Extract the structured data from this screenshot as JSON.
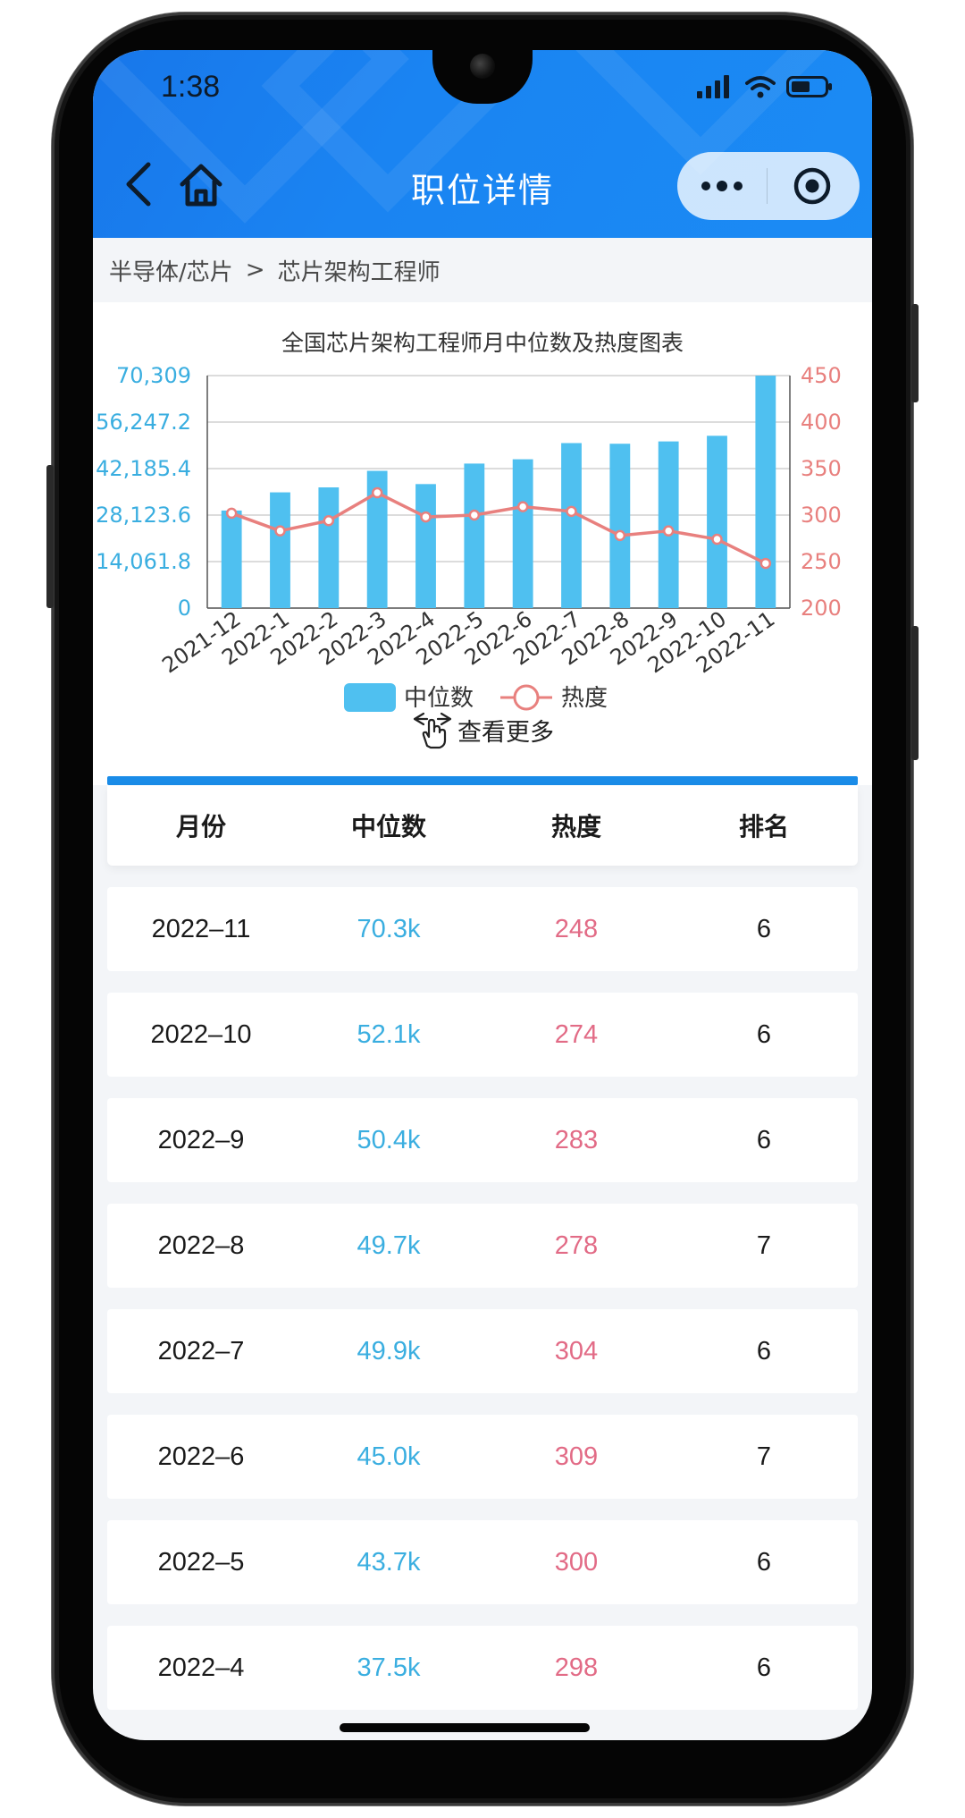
{
  "status_bar": {
    "time": "1:38"
  },
  "header": {
    "title": "职位详情"
  },
  "breadcrumb": {
    "category": "半导体/芯片",
    "separator": ">",
    "current": "芯片架构工程师"
  },
  "chart_data": {
    "type": "bar",
    "title": "全国芯片架构工程师月中位数及热度图表",
    "categories": [
      "2021-12",
      "2022-1",
      "2022-2",
      "2022-3",
      "2022-4",
      "2022-5",
      "2022-6",
      "2022-7",
      "2022-8",
      "2022-9",
      "2022-10",
      "2022-11"
    ],
    "series": [
      {
        "name": "中位数",
        "type": "bar",
        "axis": "left",
        "color": "#4fc0f0",
        "values": [
          29500,
          35000,
          36500,
          41500,
          37500,
          43700,
          45000,
          49900,
          49700,
          50400,
          52100,
          70300
        ]
      },
      {
        "name": "热度",
        "type": "line",
        "axis": "right",
        "color": "#e8807e",
        "values": [
          302,
          283,
          294,
          324,
          298,
          300,
          309,
          304,
          278,
          283,
          274,
          248
        ]
      }
    ],
    "y_left": {
      "ticks": [
        "0",
        "14,061.8",
        "28,123.6",
        "42,185.4",
        "56,247.2",
        "70,309"
      ],
      "min": 0,
      "max": 70309,
      "color": "#3aaee0"
    },
    "y_right": {
      "ticks": [
        "200",
        "250",
        "300",
        "350",
        "400",
        "450"
      ],
      "min": 200,
      "max": 450,
      "color": "#e8807e"
    },
    "grid": true,
    "legend": "bottom-center"
  },
  "see_more": {
    "label": "查看更多"
  },
  "table": {
    "headers": [
      "月份",
      "中位数",
      "热度",
      "排名"
    ],
    "rows": [
      {
        "month": "2022–11",
        "median": "70.3k",
        "heat": "248",
        "rank": "6"
      },
      {
        "month": "2022–10",
        "median": "52.1k",
        "heat": "274",
        "rank": "6"
      },
      {
        "month": "2022–9",
        "median": "50.4k",
        "heat": "283",
        "rank": "6"
      },
      {
        "month": "2022–8",
        "median": "49.7k",
        "heat": "278",
        "rank": "7"
      },
      {
        "month": "2022–7",
        "median": "49.9k",
        "heat": "304",
        "rank": "6"
      },
      {
        "month": "2022–6",
        "median": "45.0k",
        "heat": "309",
        "rank": "7"
      },
      {
        "month": "2022–5",
        "median": "43.7k",
        "heat": "300",
        "rank": "6"
      },
      {
        "month": "2022–4",
        "median": "37.5k",
        "heat": "298",
        "rank": "6"
      }
    ]
  },
  "icons": {
    "back": "chevron-left-icon",
    "home": "home-icon",
    "more": "more-dots-icon",
    "target": "target-circle-icon",
    "touch": "hand-touch-icon"
  },
  "colors": {
    "header": "#1a84f2",
    "accent_bar": "#1a8ce8",
    "median": "#3aaee0",
    "heat": "#e26b86"
  }
}
